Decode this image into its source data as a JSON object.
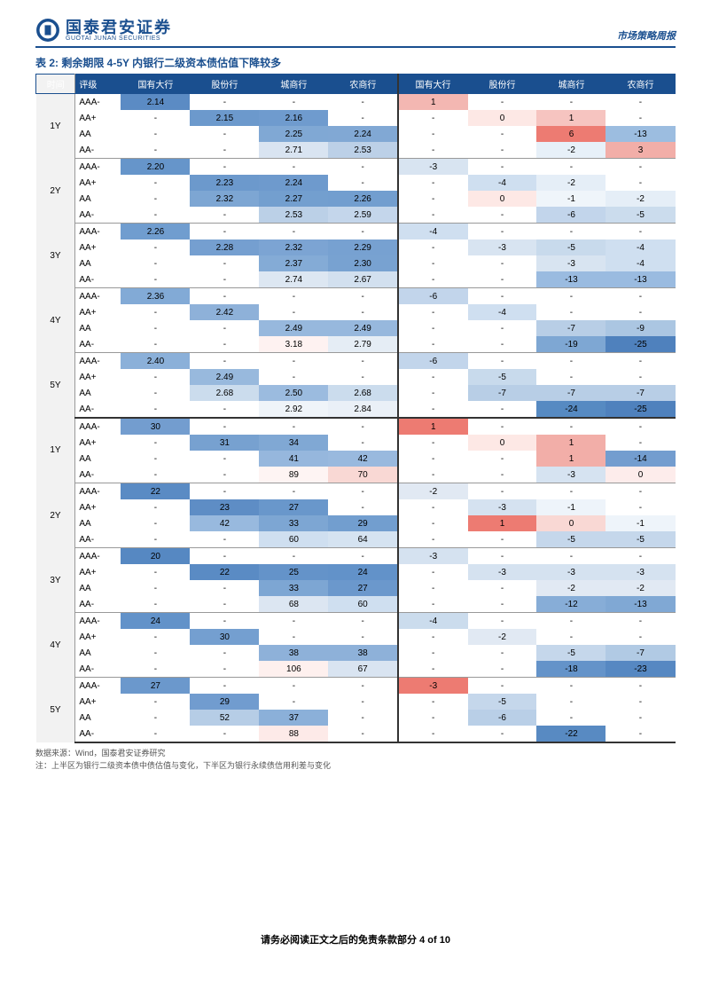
{
  "header": {
    "logo_cn": "国泰君安证券",
    "logo_en": "GUOTAI JUNAN SECURITIES",
    "right": "市场策略周报"
  },
  "title": "表 2: 剩余期限 4-5Y 内银行二级资本债估值下降较多",
  "columns": [
    "时间",
    "评级",
    "国有大行",
    "股份行",
    "城商行",
    "农商行",
    "国有大行",
    "股份行",
    "城商行",
    "农商行"
  ],
  "terms": [
    "1Y",
    "2Y",
    "3Y",
    "4Y",
    "5Y"
  ],
  "ratings": [
    "AAA-",
    "AA+",
    "AA",
    "AA-"
  ],
  "upper": {
    "1Y": {
      "AAA-": [
        "2.14",
        "-",
        "-",
        "-",
        "1",
        "-",
        "-",
        "-"
      ],
      "AA+": [
        "-",
        "2.15",
        "2.16",
        "-",
        "-",
        "0",
        "1",
        "-"
      ],
      "AA": [
        "-",
        "-",
        "2.25",
        "2.24",
        "-",
        "-",
        "6",
        "-13"
      ],
      "AA-": [
        "-",
        "-",
        "2.71",
        "2.53",
        "-",
        "-",
        "-2",
        "3"
      ]
    },
    "2Y": {
      "AAA-": [
        "2.20",
        "-",
        "-",
        "-",
        "-3",
        "-",
        "-",
        "-"
      ],
      "AA+": [
        "-",
        "2.23",
        "2.24",
        "-",
        "-",
        "-4",
        "-2",
        "-"
      ],
      "AA": [
        "-",
        "2.32",
        "2.27",
        "2.26",
        "-",
        "0",
        "-1",
        "-2"
      ],
      "AA-": [
        "-",
        "-",
        "2.53",
        "2.59",
        "-",
        "-",
        "-6",
        "-5"
      ]
    },
    "3Y": {
      "AAA-": [
        "2.26",
        "-",
        "-",
        "-",
        "-4",
        "-",
        "-",
        "-"
      ],
      "AA+": [
        "-",
        "2.28",
        "2.32",
        "2.29",
        "-",
        "-3",
        "-5",
        "-4"
      ],
      "AA": [
        "-",
        "-",
        "2.37",
        "2.30",
        "-",
        "-",
        "-3",
        "-4"
      ],
      "AA-": [
        "-",
        "-",
        "2.74",
        "2.67",
        "-",
        "-",
        "-13",
        "-13"
      ]
    },
    "4Y": {
      "AAA-": [
        "2.36",
        "-",
        "-",
        "-",
        "-6",
        "-",
        "-",
        "-"
      ],
      "AA+": [
        "-",
        "2.42",
        "-",
        "-",
        "-",
        "-4",
        "-",
        "-"
      ],
      "AA": [
        "-",
        "-",
        "2.49",
        "2.49",
        "-",
        "-",
        "-7",
        "-9"
      ],
      "AA-": [
        "-",
        "-",
        "3.18",
        "2.79",
        "-",
        "-",
        "-19",
        "-25"
      ]
    },
    "5Y": {
      "AAA-": [
        "2.40",
        "-",
        "-",
        "-",
        "-6",
        "-",
        "-",
        "-"
      ],
      "AA+": [
        "-",
        "2.49",
        "-",
        "-",
        "-",
        "-5",
        "-",
        "-"
      ],
      "AA": [
        "-",
        "2.68",
        "2.50",
        "2.68",
        "-",
        "-7",
        "-7",
        "-7"
      ],
      "AA-": [
        "-",
        "-",
        "2.92",
        "2.84",
        "-",
        "-",
        "-24",
        "-25"
      ]
    }
  },
  "lower": {
    "1Y": {
      "AAA-": [
        "30",
        "-",
        "-",
        "-",
        "1",
        "-",
        "-",
        "-"
      ],
      "AA+": [
        "-",
        "31",
        "34",
        "-",
        "-",
        "0",
        "1",
        "-"
      ],
      "AA": [
        "-",
        "-",
        "41",
        "42",
        "-",
        "-",
        "1",
        "-14"
      ],
      "AA-": [
        "-",
        "-",
        "89",
        "70",
        "-",
        "-",
        "-3",
        "0"
      ]
    },
    "2Y": {
      "AAA-": [
        "22",
        "-",
        "-",
        "-",
        "-2",
        "-",
        "-",
        "-"
      ],
      "AA+": [
        "-",
        "23",
        "27",
        "-",
        "-",
        "-3",
        "-1",
        "-"
      ],
      "AA": [
        "-",
        "42",
        "33",
        "29",
        "-",
        "1",
        "0",
        "-1"
      ],
      "AA-": [
        "-",
        "-",
        "60",
        "64",
        "-",
        "-",
        "-5",
        "-5"
      ]
    },
    "3Y": {
      "AAA-": [
        "20",
        "-",
        "-",
        "-",
        "-3",
        "-",
        "-",
        "-"
      ],
      "AA+": [
        "-",
        "22",
        "25",
        "24",
        "-",
        "-3",
        "-3",
        "-3"
      ],
      "AA": [
        "-",
        "-",
        "33",
        "27",
        "-",
        "-",
        "-2",
        "-2"
      ],
      "AA-": [
        "-",
        "-",
        "68",
        "60",
        "-",
        "-",
        "-12",
        "-13"
      ]
    },
    "4Y": {
      "AAA-": [
        "24",
        "-",
        "-",
        "-",
        "-4",
        "-",
        "-",
        "-"
      ],
      "AA+": [
        "-",
        "30",
        "-",
        "-",
        "-",
        "-2",
        "-",
        "-"
      ],
      "AA": [
        "-",
        "-",
        "38",
        "38",
        "-",
        "-",
        "-5",
        "-7"
      ],
      "AA-": [
        "-",
        "-",
        "106",
        "67",
        "-",
        "-",
        "-18",
        "-23"
      ]
    },
    "5Y": {
      "AAA-": [
        "27",
        "-",
        "-",
        "-",
        "-3",
        "-",
        "-",
        "-"
      ],
      "AA+": [
        "-",
        "29",
        "-",
        "-",
        "-",
        "-5",
        "-",
        "-"
      ],
      "AA": [
        "-",
        "52",
        "37",
        "-",
        "-",
        "-6",
        "-",
        "-"
      ],
      "AA-": [
        "-",
        "-",
        "88",
        "-",
        "-",
        "-",
        "-22",
        "-"
      ]
    }
  },
  "colors": {
    "upper": {
      "1Y": {
        "AAA-": [
          "#5b8bc4",
          "",
          "",
          "",
          "#f3b7b2",
          "",
          "",
          ""
        ],
        "AA+": [
          "",
          "#6c99cc",
          "#6f9bce",
          "",
          "",
          "#fde8e5",
          "#f6c4c0",
          ""
        ],
        "AA": [
          "",
          "",
          "#80a8d4",
          "#81a8d4",
          "",
          "",
          "#ed7b72",
          "#9cbde0"
        ],
        "AA-": [
          "",
          "",
          "#d9e4f1",
          "#bcd0e7",
          "",
          "",
          "#e7f0f8",
          "#f2aea8"
        ]
      },
      "2Y": {
        "AAA-": [
          "#6695ca",
          "",
          "",
          "",
          "#d8e4f1",
          "",
          "",
          ""
        ],
        "AA+": [
          "",
          "#6c99cc",
          "#6e9acd",
          "",
          "",
          "#cfdff0",
          "#e5eef7",
          ""
        ],
        "AA": [
          "",
          "#7da6d3",
          "#739fcf",
          "#729ecf",
          "",
          "#fde8e5",
          "#eff5fa",
          "#e5eef7"
        ],
        "AA-": [
          "",
          "",
          "#bbd0e7",
          "#c4d6eb",
          "",
          "",
          "#c2d5eb",
          "#cbdced"
        ]
      },
      "3Y": {
        "AAA-": [
          "#709dcf",
          "",
          "",
          "",
          "#cfdff0",
          "",
          "",
          ""
        ],
        "AA+": [
          "",
          "#759fd0",
          "#7ca4d3",
          "#77a1d1",
          "",
          "#d8e4f1",
          "#c8daec",
          "#cfdff0"
        ],
        "AA": [
          "",
          "",
          "#84abd6",
          "#78a2d1",
          "",
          "",
          "#d8e4f1",
          "#cfdff0"
        ],
        "AA-": [
          "",
          "",
          "#dde7f2",
          "#d2e0ef",
          "",
          "",
          "#9abbe0",
          "#9abbe0"
        ]
      },
      "4Y": {
        "AAA-": [
          "#82aad6",
          "",
          "",
          "",
          "#c2d5eb",
          "",
          "",
          ""
        ],
        "AA+": [
          "",
          "#8eb1d9",
          "",
          "",
          "",
          "#cfdff0",
          "",
          ""
        ],
        "AA": [
          "",
          "",
          "#97b8dd",
          "#97b8dd",
          "",
          "",
          "#b8cee6",
          "#abc6e2"
        ],
        "AA-": [
          "",
          "",
          "#fef2f1",
          "#e5edf5",
          "",
          "",
          "#7ea7d3",
          "#4f81bd"
        ]
      },
      "5Y": {
        "AAA-": [
          "#8bb0d9",
          "",
          "",
          "",
          "#c2d5eb",
          "",
          "",
          ""
        ],
        "AA+": [
          "",
          "#98b9dd",
          "",
          "",
          "",
          "#c8daec",
          "",
          ""
        ],
        "AA": [
          "",
          "#cbdced",
          "#9bbbdf",
          "#cbdced",
          "",
          "#b8cee6",
          "#b8cee6",
          "#b8cee6"
        ],
        "AA-": [
          "",
          "",
          "#eff4f9",
          "#eaf0f7",
          "",
          "",
          "#568ac2",
          "#4f81bd"
        ]
      }
    },
    "lower": {
      "1Y": {
        "AAA-": [
          "#739dcf",
          "",
          "",
          "",
          "#ed7b72",
          "",
          "",
          ""
        ],
        "AA+": [
          "",
          "#77a1d0",
          "#80a8d4",
          "",
          "",
          "#fde8e5",
          "#f2aea8",
          ""
        ],
        "AA": [
          "",
          "",
          "#96b7dd",
          "#99b9de",
          "",
          "",
          "#f2aea8",
          "#739dcf"
        ],
        "AA-": [
          "",
          "",
          "#fef4f3",
          "#f9d8d4",
          "",
          "",
          "#d6e3f1",
          "#fdeceb"
        ]
      },
      "2Y": {
        "AAA-": [
          "#5a8bc4",
          "",
          "",
          "",
          "#e1e9f3",
          "",
          "",
          ""
        ],
        "AA+": [
          "",
          "#5e8dc5",
          "#6997cb",
          "",
          "",
          "#d5e2f0",
          "#eef4fa",
          ""
        ],
        "AA": [
          "",
          "#98b9de",
          "#7da6d3",
          "#729ecf",
          "",
          "#ed7b72",
          "#f9d8d4",
          "#eef4fa"
        ],
        "AA-": [
          "",
          "",
          "#cfdff0",
          "#d5e3f1",
          "",
          "",
          "#c5d7eb",
          "#c5d7eb"
        ]
      },
      "3Y": {
        "AAA-": [
          "#5688c2",
          "",
          "",
          "",
          "#d5e2f0",
          "",
          "",
          ""
        ],
        "AA+": [
          "",
          "#5a8bc4",
          "#6493c9",
          "#6292c9",
          "",
          "#d5e2f0",
          "#d5e2f0",
          "#d5e2f0"
        ],
        "AA": [
          "",
          "",
          "#7da6d3",
          "#6b98cc",
          "",
          "",
          "#e1e9f3",
          "#e1e9f3"
        ],
        "AA-": [
          "",
          "",
          "#dce6f2",
          "#cfdff0",
          "",
          "",
          "#87add7",
          "#80a8d4"
        ]
      },
      "4Y": {
        "AAA-": [
          "#6292c9",
          "",
          "",
          "",
          "#cbdced",
          "",
          "",
          ""
        ],
        "AA+": [
          "",
          "#749fd0",
          "",
          "",
          "",
          "#e1e9f3",
          "",
          ""
        ],
        "AA": [
          "",
          "",
          "#8eb1d9",
          "#8eb1d9",
          "",
          "",
          "#c5d7eb",
          "#b1cae4"
        ],
        "AA-": [
          "",
          "",
          "#fef0ee",
          "#d9e4f1",
          "",
          "",
          "#6493c9",
          "#5688c2"
        ]
      },
      "5Y": {
        "AAA-": [
          "#6b98cc",
          "",
          "",
          "",
          "#ed7b72",
          "",
          "",
          ""
        ],
        "AA+": [
          "",
          "#719ccf",
          "",
          "",
          "",
          "#c5d7eb",
          "",
          ""
        ],
        "AA": [
          "",
          "#b6cde6",
          "#8bb0d9",
          "",
          "",
          "#b9cfe7",
          "",
          ""
        ],
        "AA-": [
          "",
          "",
          "#fdeae8",
          "",
          "",
          "",
          "#588ac2",
          ""
        ]
      }
    }
  },
  "notes": [
    "数据来源：Wind，国泰君安证券研究",
    "注：上半区为银行二级资本债中债估值与变化，下半区为银行永续债信用利差与变化"
  ],
  "footer": "请务必阅读正文之后的免责条款部分 4 of 10"
}
